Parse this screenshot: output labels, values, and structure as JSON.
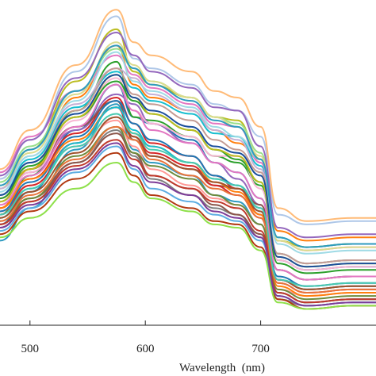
{
  "chart_data": {
    "type": "line",
    "title": "",
    "xlabel": "Wavelength  (nm)",
    "ylabel": "",
    "xlim": [
      474,
      800
    ],
    "ylim": [
      0.0,
      1.0
    ],
    "grid": false,
    "legend": "none",
    "x_ticks": [
      500,
      600,
      700
    ],
    "x": [
      474,
      500,
      540,
      575,
      590,
      605,
      640,
      660,
      680,
      700,
      715,
      740,
      780,
      800
    ],
    "series": [
      {
        "values": [
          0.26,
          0.36,
          0.54,
          0.68,
          0.54,
          0.5,
          0.46,
          0.4,
          0.38,
          0.31,
          0.1,
          0.07,
          0.08,
          0.08
        ],
        "color": "#2E9AC0"
      },
      {
        "values": [
          0.31,
          0.41,
          0.6,
          0.74,
          0.64,
          0.62,
          0.57,
          0.5,
          0.47,
          0.39,
          0.2,
          0.17,
          0.18,
          0.18
        ],
        "color": "#1F77B4"
      },
      {
        "values": [
          0.34,
          0.46,
          0.66,
          0.81,
          0.64,
          0.63,
          0.58,
          0.52,
          0.5,
          0.43,
          0.22,
          0.19,
          0.2,
          0.2
        ],
        "color": "#2CA02C"
      },
      {
        "values": [
          0.36,
          0.48,
          0.7,
          0.86,
          0.74,
          0.7,
          0.66,
          0.6,
          0.56,
          0.51,
          0.29,
          0.26,
          0.27,
          0.27
        ],
        "color": "#FF7F0E"
      },
      {
        "values": [
          0.4,
          0.51,
          0.67,
          0.78,
          0.73,
          0.69,
          0.65,
          0.59,
          0.58,
          0.49,
          0.27,
          0.24,
          0.25,
          0.25
        ],
        "color": "#17BECF"
      },
      {
        "values": [
          0.36,
          0.45,
          0.59,
          0.7,
          0.62,
          0.56,
          0.52,
          0.46,
          0.42,
          0.34,
          0.14,
          0.11,
          0.12,
          0.12
        ],
        "color": "#D62728"
      },
      {
        "values": [
          0.38,
          0.47,
          0.6,
          0.71,
          0.68,
          0.62,
          0.56,
          0.5,
          0.45,
          0.37,
          0.17,
          0.14,
          0.15,
          0.15
        ],
        "color": "#9467BD"
      },
      {
        "values": [
          0.39,
          0.48,
          0.61,
          0.69,
          0.57,
          0.52,
          0.48,
          0.43,
          0.42,
          0.37,
          0.17,
          0.14,
          0.15,
          0.15
        ],
        "color": "#8C564B"
      },
      {
        "values": [
          0.47,
          0.58,
          0.72,
          0.83,
          0.77,
          0.73,
          0.68,
          0.62,
          0.61,
          0.5,
          0.26,
          0.23,
          0.24,
          0.24
        ],
        "color": "#E377C2"
      },
      {
        "values": [
          0.3,
          0.38,
          0.5,
          0.6,
          0.52,
          0.45,
          0.4,
          0.36,
          0.34,
          0.27,
          0.08,
          0.06,
          0.07,
          0.07
        ],
        "color": "#7F7F7F"
      },
      {
        "values": [
          0.42,
          0.54,
          0.75,
          0.91,
          0.78,
          0.74,
          0.7,
          0.64,
          0.63,
          0.51,
          0.26,
          0.24,
          0.25,
          0.25
        ],
        "color": "#BCBD22"
      },
      {
        "values": [
          0.45,
          0.57,
          0.78,
          0.95,
          0.82,
          0.79,
          0.74,
          0.68,
          0.66,
          0.58,
          0.34,
          0.31,
          0.32,
          0.32
        ],
        "color": "#AEC7E8"
      },
      {
        "values": [
          0.48,
          0.6,
          0.8,
          0.97,
          0.87,
          0.83,
          0.78,
          0.72,
          0.7,
          0.61,
          0.36,
          0.32,
          0.33,
          0.33
        ],
        "color": "#FFBB78"
      },
      {
        "values": [
          0.44,
          0.55,
          0.72,
          0.85,
          0.79,
          0.75,
          0.7,
          0.64,
          0.62,
          0.53,
          0.27,
          0.24,
          0.25,
          0.25
        ],
        "color": "#98DF8A"
      },
      {
        "values": [
          0.35,
          0.43,
          0.55,
          0.63,
          0.55,
          0.48,
          0.43,
          0.39,
          0.37,
          0.31,
          0.11,
          0.09,
          0.1,
          0.1
        ],
        "color": "#FF9896"
      },
      {
        "values": [
          0.42,
          0.52,
          0.68,
          0.79,
          0.76,
          0.71,
          0.66,
          0.6,
          0.57,
          0.48,
          0.22,
          0.19,
          0.2,
          0.2
        ],
        "color": "#C5B0D5"
      },
      {
        "values": [
          0.4,
          0.5,
          0.66,
          0.79,
          0.71,
          0.68,
          0.63,
          0.57,
          0.54,
          0.47,
          0.22,
          0.19,
          0.2,
          0.2
        ],
        "color": "#C49C94"
      },
      {
        "values": [
          0.37,
          0.47,
          0.63,
          0.76,
          0.66,
          0.62,
          0.58,
          0.52,
          0.52,
          0.42,
          0.2,
          0.17,
          0.18,
          0.18
        ],
        "color": "#F7B6D2"
      },
      {
        "values": [
          0.43,
          0.53,
          0.71,
          0.87,
          0.8,
          0.75,
          0.7,
          0.64,
          0.61,
          0.52,
          0.26,
          0.23,
          0.24,
          0.24
        ],
        "color": "#DBDB8D"
      },
      {
        "values": [
          0.41,
          0.52,
          0.69,
          0.84,
          0.75,
          0.72,
          0.67,
          0.61,
          0.58,
          0.51,
          0.25,
          0.22,
          0.23,
          0.23
        ],
        "color": "#9EDAE5"
      },
      {
        "values": [
          0.35,
          0.44,
          0.58,
          0.69,
          0.62,
          0.57,
          0.52,
          0.46,
          0.43,
          0.36,
          0.15,
          0.12,
          0.13,
          0.13
        ],
        "color": "#1F77B4"
      },
      {
        "values": [
          0.36,
          0.45,
          0.57,
          0.67,
          0.59,
          0.55,
          0.5,
          0.44,
          0.41,
          0.34,
          0.12,
          0.09,
          0.1,
          0.1
        ],
        "color": "#FF7F0E"
      },
      {
        "values": [
          0.39,
          0.49,
          0.64,
          0.75,
          0.69,
          0.65,
          0.6,
          0.54,
          0.51,
          0.44,
          0.19,
          0.16,
          0.17,
          0.17
        ],
        "color": "#2CA02C"
      },
      {
        "values": [
          0.34,
          0.43,
          0.56,
          0.67,
          0.58,
          0.53,
          0.49,
          0.43,
          0.4,
          0.33,
          0.13,
          0.1,
          0.11,
          0.11
        ],
        "color": "#D62728"
      },
      {
        "values": [
          0.46,
          0.57,
          0.76,
          0.9,
          0.83,
          0.78,
          0.73,
          0.67,
          0.66,
          0.55,
          0.3,
          0.27,
          0.28,
          0.28
        ],
        "color": "#9467BD"
      },
      {
        "values": [
          0.31,
          0.39,
          0.5,
          0.59,
          0.53,
          0.46,
          0.42,
          0.37,
          0.34,
          0.28,
          0.1,
          0.07,
          0.08,
          0.08
        ],
        "color": "#8C564B"
      },
      {
        "values": [
          0.37,
          0.46,
          0.61,
          0.74,
          0.66,
          0.6,
          0.56,
          0.5,
          0.47,
          0.39,
          0.17,
          0.14,
          0.15,
          0.15
        ],
        "color": "#E377C2"
      },
      {
        "values": [
          0.38,
          0.48,
          0.64,
          0.77,
          0.7,
          0.65,
          0.6,
          0.54,
          0.52,
          0.44,
          0.21,
          0.18,
          0.19,
          0.19
        ],
        "color": "#BCBD22"
      },
      {
        "values": [
          0.33,
          0.42,
          0.56,
          0.67,
          0.6,
          0.55,
          0.5,
          0.45,
          0.43,
          0.35,
          0.14,
          0.11,
          0.12,
          0.12
        ],
        "color": "#17BECF"
      },
      {
        "values": [
          0.43,
          0.54,
          0.72,
          0.86,
          0.79,
          0.74,
          0.69,
          0.63,
          0.61,
          0.51,
          0.27,
          0.24,
          0.25,
          0.25
        ],
        "color": "#2E9AC0"
      },
      {
        "values": [
          0.28,
          0.35,
          0.45,
          0.53,
          0.46,
          0.4,
          0.36,
          0.32,
          0.31,
          0.24,
          0.08,
          0.05,
          0.06,
          0.06
        ],
        "color": "#B23A12"
      },
      {
        "values": [
          0.32,
          0.39,
          0.52,
          0.61,
          0.53,
          0.49,
          0.45,
          0.4,
          0.37,
          0.31,
          0.11,
          0.08,
          0.09,
          0.09
        ],
        "color": "#6E8B3D"
      },
      {
        "values": [
          0.4,
          0.5,
          0.65,
          0.77,
          0.7,
          0.66,
          0.61,
          0.55,
          0.53,
          0.46,
          0.21,
          0.18,
          0.19,
          0.19
        ],
        "color": "#1B4F9C"
      },
      {
        "values": [
          0.31,
          0.38,
          0.49,
          0.57,
          0.51,
          0.46,
          0.42,
          0.38,
          0.36,
          0.29,
          0.1,
          0.07,
          0.08,
          0.08
        ],
        "color": "#C0392B"
      },
      {
        "values": [
          0.27,
          0.33,
          0.42,
          0.5,
          0.44,
          0.39,
          0.35,
          0.31,
          0.3,
          0.23,
          0.07,
          0.05,
          0.06,
          0.06
        ],
        "color": "#8EE04A"
      },
      {
        "values": [
          0.33,
          0.41,
          0.53,
          0.64,
          0.58,
          0.52,
          0.48,
          0.44,
          0.42,
          0.35,
          0.14,
          0.11,
          0.12,
          0.12
        ],
        "color": "#A0522D"
      },
      {
        "values": [
          0.32,
          0.4,
          0.51,
          0.61,
          0.57,
          0.51,
          0.46,
          0.42,
          0.4,
          0.33,
          0.13,
          0.1,
          0.11,
          0.11
        ],
        "color": "#E8743B"
      },
      {
        "values": [
          0.29,
          0.36,
          0.47,
          0.55,
          0.48,
          0.42,
          0.38,
          0.34,
          0.32,
          0.26,
          0.09,
          0.06,
          0.07,
          0.07
        ],
        "color": "#5DADE2"
      },
      {
        "values": [
          0.3,
          0.37,
          0.48,
          0.56,
          0.49,
          0.44,
          0.4,
          0.35,
          0.33,
          0.27,
          0.09,
          0.06,
          0.07,
          0.07
        ],
        "color": "#7D3C98"
      },
      {
        "values": [
          0.34,
          0.42,
          0.55,
          0.65,
          0.59,
          0.54,
          0.5,
          0.45,
          0.43,
          0.36,
          0.14,
          0.12,
          0.13,
          0.13
        ],
        "color": "#48C9B0"
      }
    ]
  },
  "axis": {
    "x_tick_labels": [
      "500",
      "600",
      "700"
    ],
    "x_title": "Wavelength  (nm)"
  }
}
